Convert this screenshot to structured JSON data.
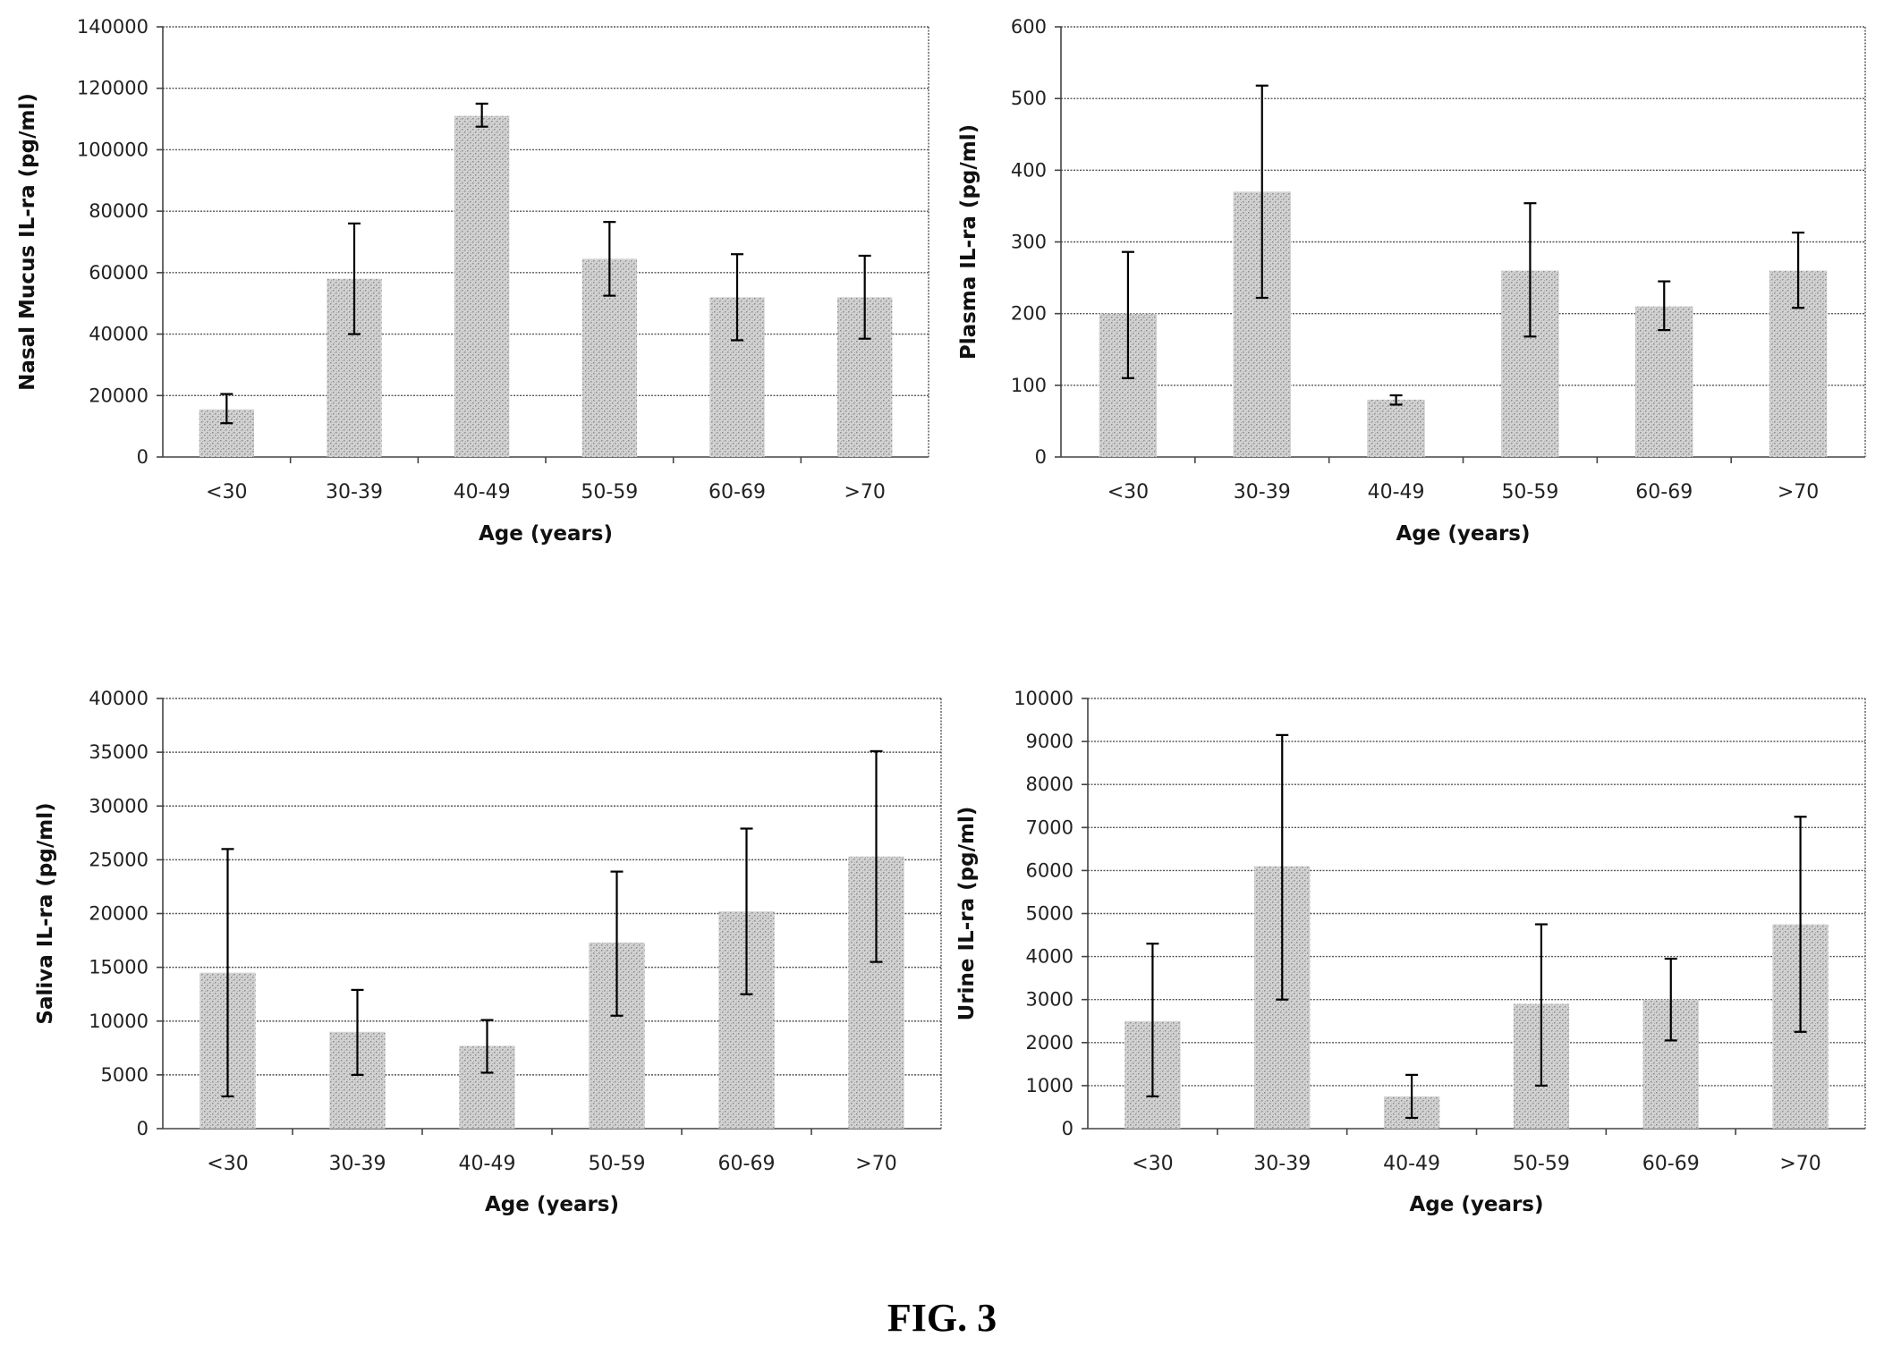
{
  "figure": {
    "caption": "FIG. 3"
  },
  "chart_data": [
    {
      "type": "bar",
      "categories": [
        "<30",
        "30-39",
        "40-49",
        "50-59",
        "60-69",
        ">70"
      ],
      "values": [
        15500,
        58000,
        111000,
        64500,
        52000,
        52000
      ],
      "err_low": [
        11000,
        40000,
        107500,
        52500,
        38000,
        38500
      ],
      "err_high": [
        20500,
        76000,
        115000,
        76500,
        66000,
        65500
      ],
      "xlabel": "Age (years)",
      "ylabel": "Nasal Mucus IL-ra (pg/ml)",
      "ylim": [
        0,
        140000
      ],
      "ytick_step": 20000,
      "grid": true
    },
    {
      "type": "bar",
      "categories": [
        "<30",
        "30-39",
        "40-49",
        "50-59",
        "60-69",
        ">70"
      ],
      "values": [
        200,
        370,
        80,
        260,
        210,
        260
      ],
      "err_low": [
        110,
        222,
        73,
        168,
        177,
        208
      ],
      "err_high": [
        286,
        518,
        86,
        354,
        245,
        313
      ],
      "xlabel": "Age (years)",
      "ylabel": "Plasma IL-ra (pg/ml)",
      "ylim": [
        0,
        600
      ],
      "ytick_step": 100,
      "grid": true
    },
    {
      "type": "bar",
      "categories": [
        "<30",
        "30-39",
        "40-49",
        "50-59",
        "60-69",
        ">70"
      ],
      "values": [
        14500,
        9000,
        7700,
        17300,
        20200,
        25300
      ],
      "err_low": [
        3000,
        5000,
        5200,
        10500,
        12500,
        15500
      ],
      "err_high": [
        26000,
        12900,
        10100,
        23900,
        27900,
        35100
      ],
      "xlabel": "Age (years)",
      "ylabel": "Saliva IL-ra (pg/ml)",
      "ylim": [
        0,
        40000
      ],
      "ytick_step": 5000,
      "grid": true
    },
    {
      "type": "bar",
      "categories": [
        "<30",
        "30-39",
        "40-49",
        "50-59",
        "60-69",
        ">70"
      ],
      "values": [
        2500,
        6100,
        750,
        2900,
        3000,
        4750
      ],
      "err_low": [
        750,
        3000,
        250,
        1000,
        2050,
        2250
      ],
      "err_high": [
        4300,
        9150,
        1250,
        4750,
        3950,
        7250
      ],
      "xlabel": "Age (years)",
      "ylabel": "Urine IL-ra (pg/ml)",
      "ylim": [
        0,
        10000
      ],
      "ytick_step": 1000,
      "grid": true
    }
  ]
}
